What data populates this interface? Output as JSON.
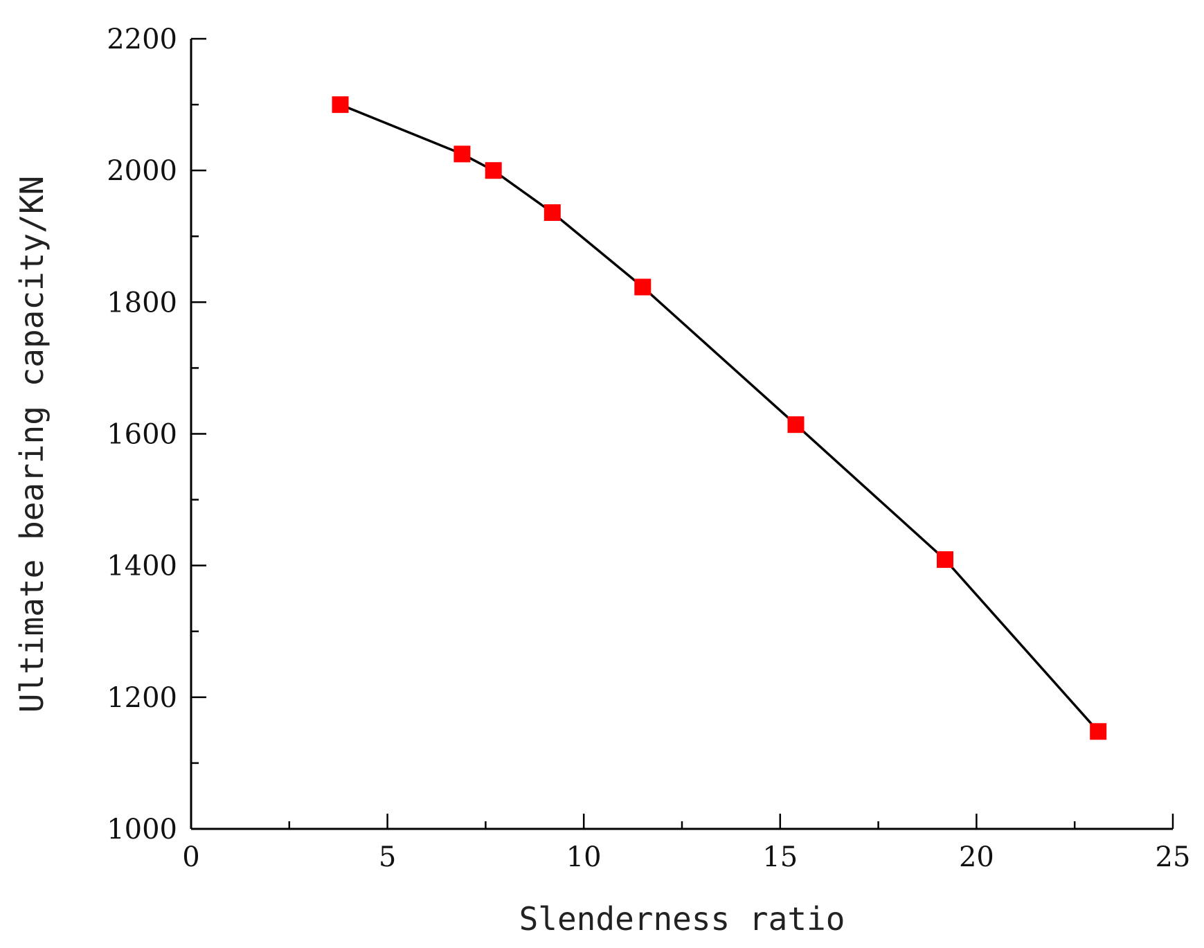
{
  "chart_data": {
    "type": "line",
    "title": "",
    "xlabel": "Slenderness ratio",
    "ylabel": "Ultimate bearing capacity/KN",
    "xlim": [
      0,
      25
    ],
    "ylim": [
      1000,
      2200
    ],
    "x_major_ticks": [
      0,
      5,
      10,
      15,
      20,
      25
    ],
    "x_tick_labels": [
      "0",
      "5",
      "10",
      "15",
      "20",
      "25"
    ],
    "x_minor_ticks": [
      2.5,
      7.5,
      12.5,
      17.5,
      22.5
    ],
    "y_major_ticks": [
      1000,
      1200,
      1400,
      1600,
      1800,
      2000,
      2200
    ],
    "y_tick_labels": [
      "1000",
      "1200",
      "1400",
      "1600",
      "1800",
      "2000",
      "2200"
    ],
    "y_minor_ticks": [
      1100,
      1300,
      1500,
      1700,
      1900,
      2100
    ],
    "grid": false,
    "legend": "none",
    "line_color": "#000000",
    "marker_color": "#ff0000",
    "marker_shape": "square",
    "series": [
      {
        "x": [
          3.8,
          6.9,
          7.7,
          9.2,
          11.5,
          15.4,
          19.2,
          23.1
        ],
        "y": [
          2100,
          2025,
          2000,
          1936,
          1823,
          1614,
          1409,
          1148
        ]
      }
    ]
  }
}
